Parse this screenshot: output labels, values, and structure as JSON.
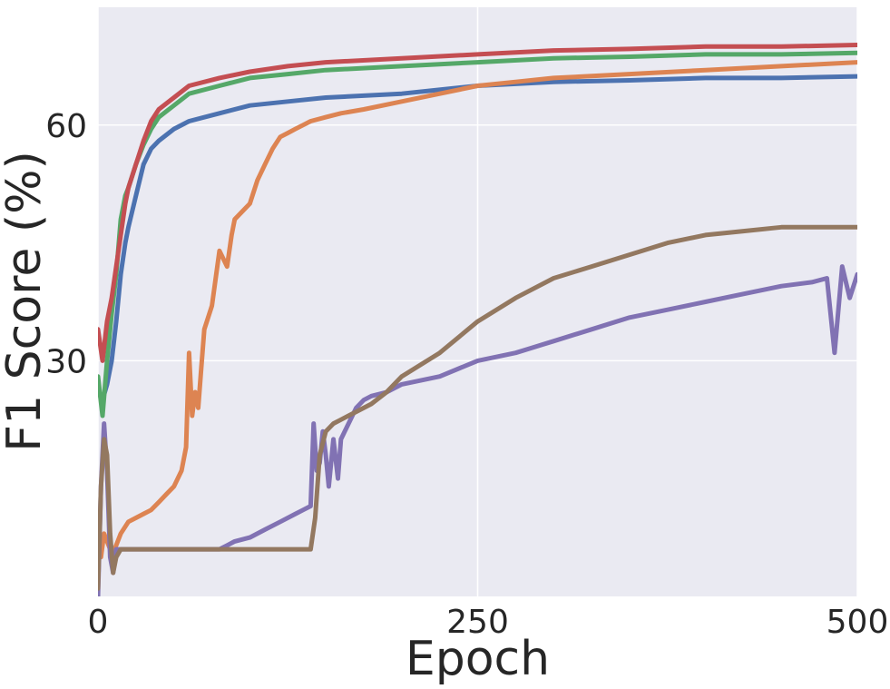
{
  "chart_data": {
    "type": "line",
    "title": "",
    "xlabel": "Epoch",
    "ylabel": "F1 Score (%)",
    "xlim": [
      0,
      500
    ],
    "ylim": [
      0,
      75
    ],
    "xticks": [
      0,
      250,
      500
    ],
    "xtick_labels": [
      "0",
      "250",
      "500"
    ],
    "yticks": [
      30,
      60
    ],
    "ytick_labels": [
      "30",
      "60"
    ],
    "grid": true,
    "legend": "none",
    "background": "#eaeaf2",
    "series": [
      {
        "color": "#4c72b0",
        "x": [
          0,
          3,
          6,
          9,
          12,
          15,
          18,
          20,
          25,
          30,
          35,
          40,
          50,
          60,
          80,
          100,
          125,
          150,
          200,
          250,
          300,
          350,
          400,
          450,
          500
        ],
        "y": [
          26,
          25,
          27,
          30,
          35,
          41,
          45,
          47,
          51,
          55,
          57,
          58,
          59.5,
          60.5,
          61.5,
          62.5,
          63,
          63.5,
          64,
          65,
          65.5,
          65.7,
          66,
          66,
          66.2
        ]
      },
      {
        "color": "#dd8452",
        "x": [
          0,
          2,
          4,
          6,
          8,
          10,
          15,
          20,
          25,
          30,
          35,
          40,
          45,
          50,
          55,
          58,
          60,
          62,
          64,
          66,
          68,
          70,
          75,
          80,
          85,
          88,
          90,
          95,
          100,
          105,
          110,
          115,
          120,
          125,
          130,
          135,
          140,
          150,
          160,
          175,
          200,
          225,
          250,
          275,
          300,
          350,
          400,
          450,
          500
        ],
        "y": [
          10,
          5,
          8,
          7,
          6,
          5.5,
          8,
          9.5,
          10,
          10.5,
          11,
          12,
          13,
          14,
          16,
          19,
          31,
          23,
          26,
          24,
          29,
          34,
          37,
          44,
          42,
          46,
          48,
          49,
          50,
          53,
          55,
          57,
          58.5,
          59,
          59.5,
          60,
          60.5,
          61,
          61.5,
          62,
          63,
          64,
          65,
          65.5,
          66,
          66.5,
          67,
          67.5,
          68
        ]
      },
      {
        "color": "#55a868",
        "x": [
          0,
          3,
          6,
          9,
          12,
          15,
          18,
          20,
          25,
          30,
          35,
          40,
          50,
          60,
          80,
          100,
          125,
          150,
          200,
          250,
          300,
          350,
          400,
          450,
          500
        ],
        "y": [
          28,
          23,
          30,
          36,
          41,
          48,
          51,
          52,
          55,
          57.5,
          59.5,
          61,
          62.5,
          64,
          65,
          66,
          66.5,
          67,
          67.5,
          68,
          68.5,
          68.7,
          69,
          69,
          69.2
        ]
      },
      {
        "color": "#c44e52",
        "x": [
          0,
          3,
          6,
          9,
          12,
          15,
          18,
          20,
          25,
          30,
          35,
          40,
          50,
          60,
          80,
          100,
          125,
          150,
          200,
          250,
          300,
          350,
          400,
          450,
          500
        ],
        "y": [
          34,
          30,
          35,
          38,
          42,
          46,
          50,
          52,
          55,
          58,
          60.5,
          62,
          63.5,
          65,
          66,
          66.8,
          67.5,
          68,
          68.5,
          69,
          69.5,
          69.7,
          70,
          70,
          70.2
        ]
      },
      {
        "color": "#8172b3",
        "x": [
          0,
          2,
          4,
          6,
          8,
          10,
          12,
          15,
          20,
          30,
          40,
          50,
          60,
          70,
          80,
          85,
          90,
          100,
          110,
          120,
          130,
          135,
          140,
          142,
          144,
          146,
          148,
          150,
          152,
          155,
          158,
          160,
          165,
          170,
          175,
          180,
          190,
          200,
          225,
          250,
          275,
          300,
          325,
          350,
          375,
          400,
          425,
          450,
          470,
          480,
          485,
          490,
          495,
          500
        ],
        "y": [
          0,
          14,
          22,
          16,
          5,
          3,
          6,
          6,
          6,
          6,
          6,
          6,
          6,
          6,
          6,
          6.5,
          7,
          7.5,
          8.5,
          9.5,
          10.5,
          11,
          11.5,
          22,
          16,
          17,
          21,
          18,
          14,
          20,
          15,
          20,
          22,
          24,
          25,
          25.5,
          26,
          27,
          28,
          30,
          31,
          32.5,
          34,
          35.5,
          36.5,
          37.5,
          38.5,
          39.5,
          40,
          40.5,
          31,
          42,
          38,
          41
        ]
      },
      {
        "color": "#937860",
        "x": [
          0,
          2,
          4,
          6,
          8,
          10,
          12,
          15,
          20,
          30,
          50,
          80,
          100,
          120,
          130,
          135,
          140,
          143,
          146,
          150,
          155,
          160,
          170,
          180,
          190,
          200,
          225,
          250,
          275,
          300,
          325,
          350,
          375,
          400,
          425,
          450,
          475,
          500
        ],
        "y": [
          1,
          14,
          20,
          18,
          8,
          3,
          5,
          6,
          6,
          6,
          6,
          6,
          6,
          6,
          6,
          6,
          6,
          10,
          18,
          21,
          22,
          22.5,
          23.5,
          24.5,
          26,
          28,
          31,
          35,
          38,
          40.5,
          42,
          43.5,
          45,
          46,
          46.5,
          47,
          47,
          47
        ]
      }
    ]
  }
}
